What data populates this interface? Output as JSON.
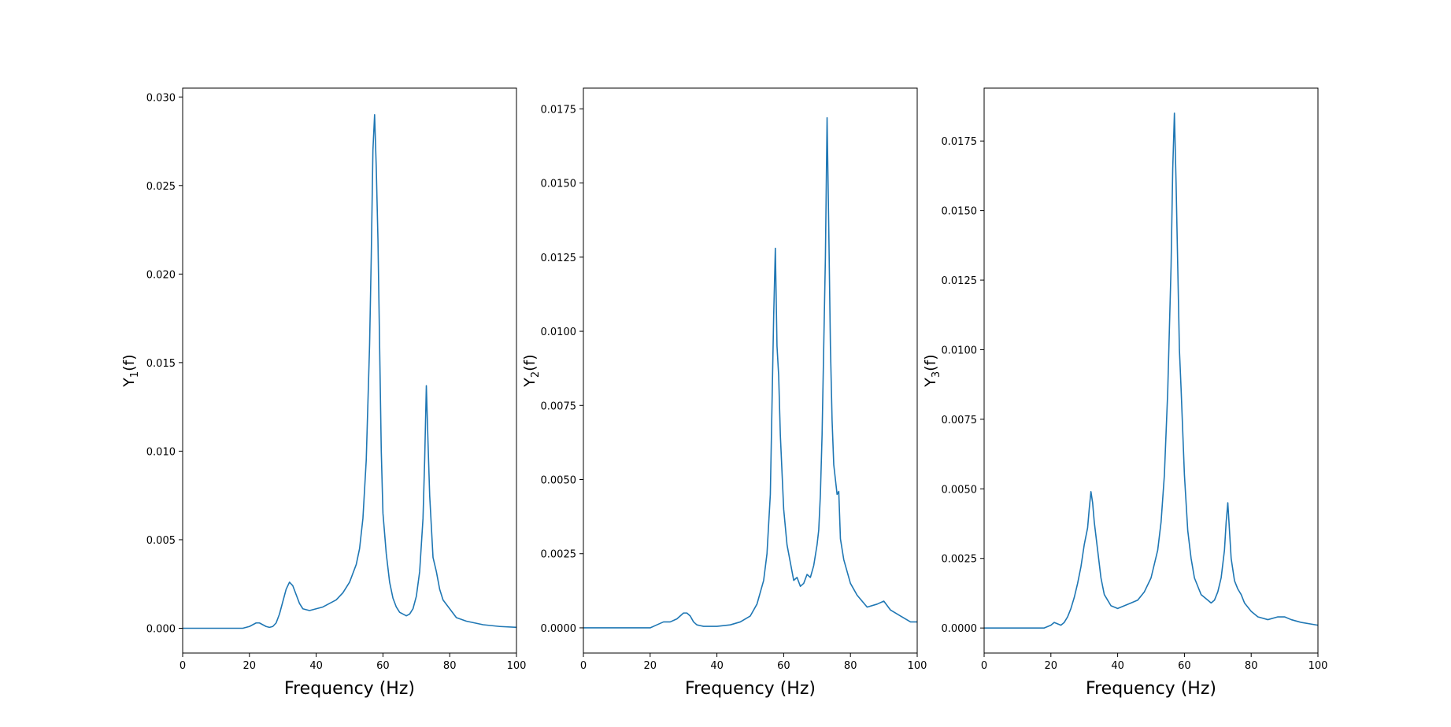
{
  "chart_data": [
    {
      "type": "line",
      "xlabel": "Frequency (Hz)",
      "ylabel_main": "Y",
      "ylabel_sub": "1",
      "ylabel_tail": "(f)",
      "xlim": [
        0,
        100
      ],
      "ylim": [
        -0.0014,
        0.0305
      ],
      "xticks": [
        0,
        20,
        40,
        60,
        80,
        100
      ],
      "xtick_labels": [
        "0",
        "20",
        "40",
        "60",
        "80",
        "100"
      ],
      "yticks": [
        0.0,
        0.005,
        0.01,
        0.015,
        0.02,
        0.025,
        0.03
      ],
      "ytick_labels": [
        "0.000",
        "0.005",
        "0.010",
        "0.015",
        "0.020",
        "0.025",
        "0.030"
      ],
      "grid": false,
      "line_color": "#1f77b4",
      "series": [
        {
          "x": [
            0,
            18,
            20,
            21,
            22,
            23,
            24,
            25,
            26,
            27,
            28,
            29,
            30,
            31,
            32,
            33,
            34,
            35,
            36,
            38,
            40,
            42,
            44,
            46,
            48,
            50,
            52,
            53,
            54,
            55,
            56,
            56.5,
            57,
            57.5,
            58,
            58.5,
            59,
            59.5,
            60,
            61,
            62,
            63,
            64,
            65,
            66,
            67,
            68,
            69,
            70,
            71,
            72,
            72.5,
            73,
            73.5,
            74,
            75,
            76,
            77,
            78,
            80,
            82,
            85,
            90,
            95,
            100
          ],
          "y": [
            0.0,
            0.0,
            0.0001,
            0.0002,
            0.0003,
            0.0003,
            0.0002,
            0.0001,
            5e-05,
            0.0001,
            0.0003,
            0.0008,
            0.0015,
            0.0022,
            0.0026,
            0.0024,
            0.0019,
            0.0014,
            0.0011,
            0.001,
            0.0011,
            0.0012,
            0.0014,
            0.0016,
            0.002,
            0.0026,
            0.0036,
            0.0045,
            0.0062,
            0.0095,
            0.016,
            0.021,
            0.027,
            0.029,
            0.026,
            0.022,
            0.016,
            0.01,
            0.0065,
            0.0042,
            0.0026,
            0.0017,
            0.0012,
            0.0009,
            0.0008,
            0.0007,
            0.0008,
            0.0011,
            0.0018,
            0.0032,
            0.0062,
            0.0095,
            0.0137,
            0.0105,
            0.0075,
            0.004,
            0.0032,
            0.0022,
            0.0016,
            0.0011,
            0.0006,
            0.0004,
            0.0002,
            0.0001,
            5e-05
          ]
        }
      ]
    },
    {
      "type": "line",
      "xlabel": "Frequency (Hz)",
      "ylabel_main": "Y",
      "ylabel_sub": "2",
      "ylabel_tail": "(f)",
      "xlim": [
        0,
        100
      ],
      "ylim": [
        -0.00085,
        0.0182
      ],
      "xticks": [
        0,
        20,
        40,
        60,
        80,
        100
      ],
      "xtick_labels": [
        "0",
        "20",
        "40",
        "60",
        "80",
        "100"
      ],
      "yticks": [
        0.0,
        0.0025,
        0.005,
        0.0075,
        0.01,
        0.0125,
        0.015,
        0.0175
      ],
      "ytick_labels": [
        "0.0000",
        "0.0025",
        "0.0050",
        "0.0075",
        "0.0100",
        "0.0125",
        "0.0150",
        "0.0175"
      ],
      "grid": false,
      "line_color": "#1f77b4",
      "series": [
        {
          "x": [
            0,
            20,
            22,
            24,
            26,
            28,
            29,
            30,
            31,
            32,
            33,
            34,
            36,
            40,
            44,
            47,
            50,
            52,
            54,
            55,
            56,
            56.5,
            57,
            57.5,
            58,
            58.5,
            59,
            60,
            61,
            62,
            63,
            64,
            65,
            66,
            67,
            68,
            69,
            70,
            70.5,
            71,
            71.5,
            72,
            72.5,
            73,
            73.5,
            74,
            74.5,
            75,
            76,
            76.5,
            77,
            78,
            80,
            82,
            85,
            88,
            90,
            92,
            95,
            98,
            100
          ],
          "y": [
            0.0,
            0.0,
            0.0001,
            0.0002,
            0.0002,
            0.0003,
            0.0004,
            0.0005,
            0.0005,
            0.0004,
            0.0002,
            0.0001,
            5e-05,
            5e-05,
            0.0001,
            0.0002,
            0.0004,
            0.0008,
            0.0016,
            0.0025,
            0.0045,
            0.0075,
            0.0105,
            0.0128,
            0.0095,
            0.0085,
            0.0065,
            0.004,
            0.0028,
            0.0022,
            0.0016,
            0.0017,
            0.0014,
            0.0015,
            0.0018,
            0.0017,
            0.0021,
            0.0028,
            0.0033,
            0.0045,
            0.0065,
            0.0095,
            0.0125,
            0.0172,
            0.0135,
            0.0095,
            0.007,
            0.0055,
            0.0045,
            0.0046,
            0.003,
            0.0023,
            0.0015,
            0.0011,
            0.0007,
            0.0008,
            0.0009,
            0.0006,
            0.0004,
            0.0002,
            0.0002
          ]
        }
      ]
    },
    {
      "type": "line",
      "xlabel": "Frequency (Hz)",
      "ylabel_main": "Y",
      "ylabel_sub": "3",
      "ylabel_tail": "(f)",
      "xlim": [
        0,
        100
      ],
      "ylim": [
        -0.0009,
        0.0194
      ],
      "xticks": [
        0,
        20,
        40,
        60,
        80,
        100
      ],
      "xtick_labels": [
        "0",
        "20",
        "40",
        "60",
        "80",
        "100"
      ],
      "yticks": [
        0.0,
        0.0025,
        0.005,
        0.0075,
        0.01,
        0.0125,
        0.015,
        0.0175
      ],
      "ytick_labels": [
        "0.0000",
        "0.0025",
        "0.0050",
        "0.0075",
        "0.0100",
        "0.0125",
        "0.0150",
        "0.0175"
      ],
      "grid": false,
      "line_color": "#1f77b4",
      "series": [
        {
          "x": [
            0,
            18,
            20,
            21,
            22,
            23,
            24,
            25,
            26,
            27,
            28,
            29,
            30,
            31,
            31.5,
            32,
            32.5,
            33,
            34,
            35,
            36,
            38,
            40,
            42,
            44,
            46,
            48,
            50,
            52,
            53,
            54,
            55,
            56,
            56.5,
            57,
            57.5,
            58,
            58.5,
            59,
            60,
            61,
            62,
            63,
            64,
            65,
            66,
            67,
            68,
            69,
            70,
            71,
            72,
            72.5,
            73,
            73.5,
            74,
            75,
            76,
            77,
            78,
            80,
            82,
            85,
            88,
            90,
            92,
            95,
            100
          ],
          "y": [
            0.0,
            0.0,
            0.0001,
            0.0002,
            0.00015,
            0.0001,
            0.0002,
            0.0004,
            0.0007,
            0.0011,
            0.0016,
            0.0022,
            0.003,
            0.0036,
            0.0043,
            0.0049,
            0.0045,
            0.0038,
            0.0028,
            0.0018,
            0.0012,
            0.0008,
            0.0007,
            0.0008,
            0.0009,
            0.001,
            0.0013,
            0.0018,
            0.0028,
            0.0038,
            0.0055,
            0.0085,
            0.013,
            0.0165,
            0.0185,
            0.016,
            0.013,
            0.01,
            0.0086,
            0.0055,
            0.0035,
            0.0025,
            0.0018,
            0.0015,
            0.0012,
            0.0011,
            0.001,
            0.0009,
            0.001,
            0.0013,
            0.0018,
            0.0028,
            0.0038,
            0.0045,
            0.0035,
            0.0025,
            0.0017,
            0.0014,
            0.0012,
            0.0009,
            0.0006,
            0.0004,
            0.0003,
            0.0004,
            0.0004,
            0.0003,
            0.0002,
            0.0001
          ]
        }
      ]
    }
  ]
}
